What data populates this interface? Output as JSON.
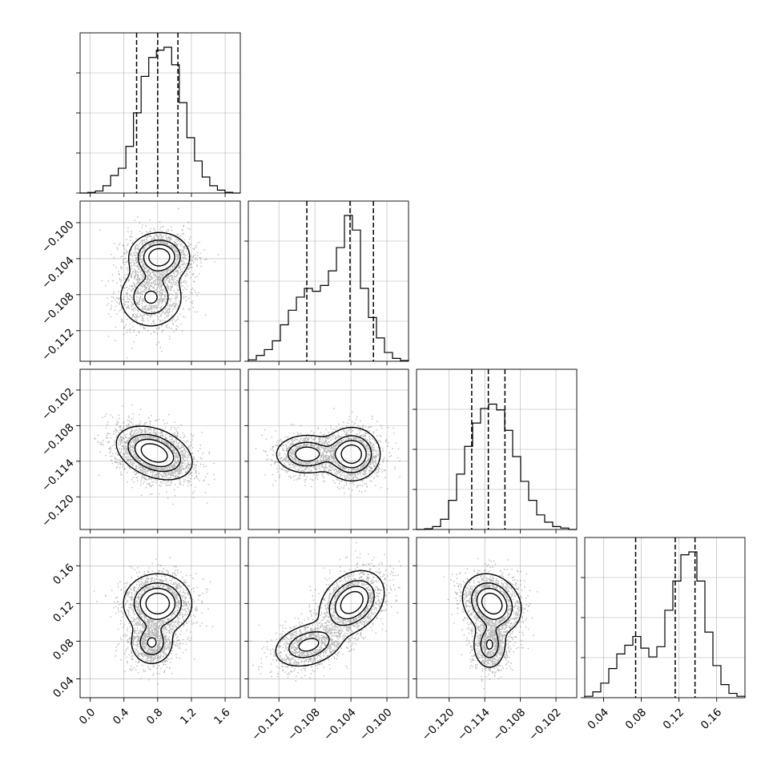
{
  "chart_data": {
    "type": "corner",
    "title": "",
    "n_params": 4,
    "axes": [
      {
        "index": 0,
        "label": "",
        "range": [
          -0.12,
          1.78
        ],
        "ticks": [
          0.0,
          0.4,
          0.8,
          1.2,
          1.6
        ],
        "tick_labels": [
          "0.0",
          "0.4",
          "0.8",
          "1.2",
          "1.6"
        ],
        "quantiles": [
          0.55,
          0.8,
          1.04
        ],
        "hist": [
          0,
          0.004,
          0.014,
          0.05,
          0.12,
          0.17,
          0.32,
          0.55,
          0.8,
          0.93,
          0.98,
          1.0,
          0.88,
          0.62,
          0.38,
          0.22,
          0.11,
          0.05,
          0.02,
          0.005,
          0
        ]
      },
      {
        "index": 1,
        "label": "",
        "range": [
          -0.1154,
          -0.0976
        ],
        "ticks": [
          -0.112,
          -0.108,
          -0.104,
          -0.1
        ],
        "tick_labels": [
          "−0.112",
          "−0.108",
          "−0.104",
          "−0.100"
        ],
        "quantiles": [
          -0.1089,
          -0.1041,
          -0.1015
        ],
        "hist": [
          0.01,
          0.04,
          0.08,
          0.14,
          0.25,
          0.35,
          0.44,
          0.5,
          0.48,
          0.52,
          0.62,
          0.78,
          1.0,
          0.9,
          0.5,
          0.3,
          0.16,
          0.06,
          0.02,
          0.005
        ]
      },
      {
        "index": 2,
        "label": "",
        "range": [
          -0.1255,
          -0.0985
        ],
        "ticks": [
          -0.12,
          -0.114,
          -0.108,
          -0.102
        ],
        "tick_labels": [
          "−0.120",
          "−0.114",
          "−0.108",
          "−0.102"
        ],
        "quantiles": [
          -0.1162,
          -0.1134,
          -0.1106
        ],
        "hist": [
          0,
          0.005,
          0.02,
          0.07,
          0.2,
          0.38,
          0.57,
          0.73,
          0.83,
          0.86,
          0.82,
          0.68,
          0.5,
          0.33,
          0.2,
          0.1,
          0.05,
          0.02,
          0.01,
          0
        ]
      },
      {
        "index": 3,
        "label": "",
        "range": [
          0.02,
          0.19
        ],
        "ticks": [
          0.04,
          0.08,
          0.12,
          0.16
        ],
        "tick_labels": [
          "0.04",
          "0.08",
          "0.12",
          "0.16"
        ],
        "quantiles": [
          0.074,
          0.116,
          0.137
        ],
        "hist": [
          0.01,
          0.04,
          0.1,
          0.2,
          0.3,
          0.36,
          0.42,
          0.34,
          0.28,
          0.35,
          0.6,
          0.8,
          0.98,
          1.0,
          0.8,
          0.45,
          0.22,
          0.09,
          0.03,
          0.01
        ]
      }
    ],
    "pairs": [
      {
        "x": 0,
        "y": 1,
        "components": [
          {
            "mx": 0.82,
            "my": -0.1038,
            "sx": 0.16,
            "sy": 0.0012,
            "rho": 0.0,
            "w": 0.7
          },
          {
            "mx": 0.72,
            "my": -0.1083,
            "sx": 0.18,
            "sy": 0.0016,
            "rho": 0.0,
            "w": 0.4
          }
        ]
      },
      {
        "x": 0,
        "y": 2,
        "components": [
          {
            "mx": 0.76,
            "my": -0.1126,
            "sx": 0.2,
            "sy": 0.002,
            "rho": -0.35,
            "w": 1.0
          }
        ]
      },
      {
        "x": 1,
        "y": 2,
        "components": [
          {
            "mx": -0.1039,
            "my": -0.1128,
            "sx": 0.0014,
            "sy": 0.002,
            "rho": 0.0,
            "w": 0.7
          },
          {
            "mx": -0.1089,
            "my": -0.1128,
            "sx": 0.0016,
            "sy": 0.0015,
            "rho": 0.0,
            "w": 0.5
          }
        ]
      },
      {
        "x": 0,
        "y": 3,
        "components": [
          {
            "mx": 0.8,
            "my": 0.12,
            "sx": 0.18,
            "sy": 0.014,
            "rho": 0.0,
            "w": 0.8
          },
          {
            "mx": 0.73,
            "my": 0.078,
            "sx": 0.12,
            "sy": 0.011,
            "rho": 0.0,
            "w": 0.45
          }
        ]
      },
      {
        "x": 1,
        "y": 3,
        "components": [
          {
            "mx": -0.1039,
            "my": 0.121,
            "sx": 0.0016,
            "sy": 0.015,
            "rho": 0.3,
            "w": 0.8
          },
          {
            "mx": -0.1087,
            "my": 0.076,
            "sx": 0.0018,
            "sy": 0.011,
            "rho": 0.3,
            "w": 0.5
          }
        ]
      },
      {
        "x": 2,
        "y": 3,
        "components": [
          {
            "mx": -0.1128,
            "my": 0.12,
            "sx": 0.0022,
            "sy": 0.014,
            "rho": -0.2,
            "w": 0.8
          },
          {
            "mx": -0.1132,
            "my": 0.076,
            "sx": 0.0013,
            "sy": 0.012,
            "rho": 0.0,
            "w": 0.45
          }
        ]
      }
    ],
    "contour_levels": [
      0.118,
      0.393,
      0.675,
      0.865
    ],
    "grid": true,
    "colors": {
      "ink": "#000000",
      "grid": "#b0b0b0",
      "background": "#ffffff"
    }
  }
}
